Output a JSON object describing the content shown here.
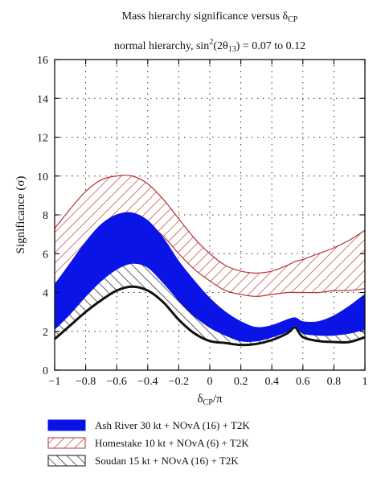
{
  "chart_data": {
    "type": "area",
    "title_line1": "Mass hierarchy significance versus δ",
    "title_line1_sub": "CP",
    "title_line2_pre": "normal hierarchy, sin",
    "title_line2_sup": "2",
    "title_line2_mid": "(2θ",
    "title_line2_sub": "13",
    "title_line2_post": ") = 0.07 to 0.12",
    "xlabel_main": "δ",
    "xlabel_sub": "CP",
    "xlabel_post": "/π",
    "ylabel": "Significance (σ)",
    "xlim": [
      -1,
      1
    ],
    "ylim": [
      0,
      16
    ],
    "x_ticks": [
      -1,
      -0.8,
      -0.6,
      -0.4,
      -0.2,
      0,
      0.2,
      0.4,
      0.6,
      0.8,
      1
    ],
    "x_tick_labels": [
      "−1",
      "−0.8",
      "−0.6",
      "−0.4",
      "−0.2",
      "0",
      "0.2",
      "0.4",
      "0.6",
      "0.8",
      "1"
    ],
    "y_ticks": [
      0,
      2,
      4,
      6,
      8,
      10,
      12,
      14,
      16
    ],
    "y_tick_labels": [
      "0",
      "2",
      "4",
      "6",
      "8",
      "10",
      "12",
      "14",
      "16"
    ],
    "grid": true,
    "legend_position": "bottom",
    "x": [
      -1,
      -0.9,
      -0.8,
      -0.7,
      -0.6,
      -0.5,
      -0.4,
      -0.3,
      -0.2,
      -0.1,
      0,
      0.1,
      0.2,
      0.3,
      0.4,
      0.5,
      0.55,
      0.6,
      0.7,
      0.8,
      0.9,
      1
    ],
    "series": [
      {
        "name": "Ash River 30 kt + NOvA (16) + T2K",
        "style": "solid",
        "color": "#0a14e6",
        "upper": [
          4.4,
          5.5,
          6.6,
          7.5,
          8.0,
          8.1,
          7.7,
          6.8,
          5.6,
          4.6,
          3.7,
          3.0,
          2.5,
          2.2,
          2.3,
          2.6,
          2.7,
          2.5,
          2.5,
          2.8,
          3.3,
          3.9
        ],
        "lower": [
          2.1,
          2.9,
          3.8,
          4.6,
          5.2,
          5.5,
          5.3,
          4.5,
          3.6,
          2.8,
          2.2,
          1.8,
          1.5,
          1.5,
          1.7,
          2.0,
          2.3,
          1.9,
          1.8,
          1.8,
          1.9,
          2.1
        ]
      },
      {
        "name": "Homestake 10 kt + NOvA (6) + T2K",
        "style": "hatch-red",
        "color": "#b83232",
        "upper": [
          7.3,
          8.3,
          9.2,
          9.8,
          10.0,
          10.0,
          9.6,
          8.8,
          7.8,
          6.8,
          6.0,
          5.4,
          5.1,
          5.0,
          5.1,
          5.4,
          5.6,
          5.7,
          6.0,
          6.3,
          6.7,
          7.2
        ],
        "lower": [
          4.0,
          4.8,
          5.7,
          6.5,
          7.2,
          7.6,
          7.5,
          6.9,
          6.0,
          5.2,
          4.6,
          4.1,
          3.9,
          3.8,
          3.9,
          4.0,
          4.0,
          4.0,
          4.0,
          4.1,
          4.1,
          4.2
        ]
      },
      {
        "name": "Soudan 15 kt + NOvA (16) + T2K",
        "style": "hatch-black",
        "color": "#111111",
        "upper": [
          2.5,
          3.4,
          4.3,
          5.0,
          5.5,
          5.7,
          5.4,
          4.6,
          3.6,
          2.8,
          2.3,
          2.0,
          1.8,
          1.8,
          2.0,
          2.4,
          2.5,
          2.4,
          2.3,
          2.2,
          2.3,
          2.6
        ],
        "lower": [
          1.6,
          2.3,
          3.0,
          3.6,
          4.1,
          4.3,
          4.1,
          3.5,
          2.6,
          1.9,
          1.5,
          1.4,
          1.3,
          1.35,
          1.55,
          1.9,
          2.2,
          1.7,
          1.5,
          1.45,
          1.45,
          1.7
        ]
      }
    ]
  },
  "legend": {
    "items": [
      {
        "label": "Ash River 30 kt + NOvA (16) + T2K"
      },
      {
        "label": "Homestake 10 kt + NOvA (6) + T2K"
      },
      {
        "label": "Soudan 15 kt + NOvA (16) + T2K"
      }
    ]
  }
}
